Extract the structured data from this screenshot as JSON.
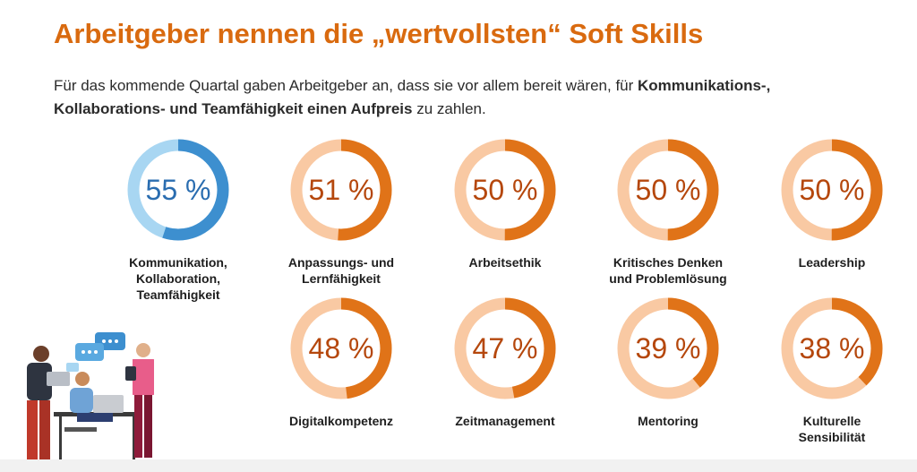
{
  "header": {
    "title": "Arbeitgeber nennen die „wertvollsten“ Soft Skills",
    "intro_part1": "Für das kommende Quartal gaben Arbeitgeber an, dass sie vor allem bereit wären, für ",
    "intro_bold": "Kommunikations-, Kollaborations- und Teamfähigkeit einen Aufpreis",
    "intro_part2": " zu zahlen."
  },
  "colors": {
    "highlight_fill": "#3d8fcf",
    "highlight_track": "#a8d6f2",
    "highlight_text": "#2a6db0",
    "fill": "#e07318",
    "track": "#f9c9a3",
    "text": "#b5470c"
  },
  "illustration": {
    "icon": "team-working-illustration"
  },
  "chart_data": {
    "type": "donut",
    "unit": "%",
    "items": [
      {
        "label_lines": [
          "Kommunikation,",
          "Kollaboration,",
          "Teamfähigkeit"
        ],
        "value": 55,
        "display": "55 %",
        "highlight": true
      },
      {
        "label_lines": [
          "Anpassungs- und",
          "Lernfähigkeit"
        ],
        "value": 51,
        "display": "51 %"
      },
      {
        "label_lines": [
          "Arbeitsethik"
        ],
        "value": 50,
        "display": "50 %"
      },
      {
        "label_lines": [
          "Kritisches Denken",
          "und Problemlösung"
        ],
        "value": 50,
        "display": "50 %"
      },
      {
        "label_lines": [
          "Leadership"
        ],
        "value": 50,
        "display": "50 %"
      },
      {
        "label_lines": [
          "Digitalkompetenz"
        ],
        "value": 48,
        "display": "48 %"
      },
      {
        "label_lines": [
          "Zeitmanagement"
        ],
        "value": 47,
        "display": "47 %"
      },
      {
        "label_lines": [
          "Mentoring"
        ],
        "value": 39,
        "display": "39 %"
      },
      {
        "label_lines": [
          "Kulturelle",
          "Sensibilität"
        ],
        "value": 38,
        "display": "38 %"
      }
    ]
  }
}
